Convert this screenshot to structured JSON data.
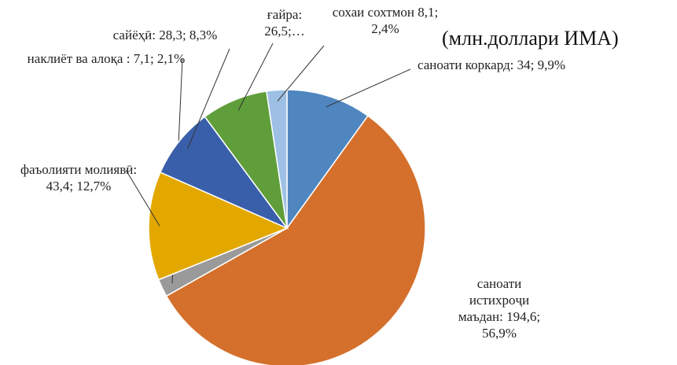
{
  "chart_data": {
    "type": "pie",
    "title": "(млн.доллари ИМА)",
    "categories": [
      "саноати коркард:",
      "саноати истихроҷи маъдан:",
      "наклиёт ва алоқа :",
      "фаъолияти молиявӣ:",
      "сайёҳӣ:",
      "ғайра:",
      "сохаи сохтмон"
    ],
    "values": [
      34,
      194.6,
      7.1,
      43.4,
      28.3,
      26.5,
      8.1
    ],
    "value_labels": [
      "34; 9,9%",
      "194,6; 56,9%",
      "7,1; 2,1%",
      "43,4; 12,7%",
      "28,3; 8,3%",
      "26,5;…",
      "8,1; 2,4%"
    ],
    "colors": [
      "#4f86c0",
      "#d4702c",
      "#9a9a9a",
      "#e3a800",
      "#3a5faa",
      "#5f9e3a",
      "#9ec0e4"
    ]
  }
}
